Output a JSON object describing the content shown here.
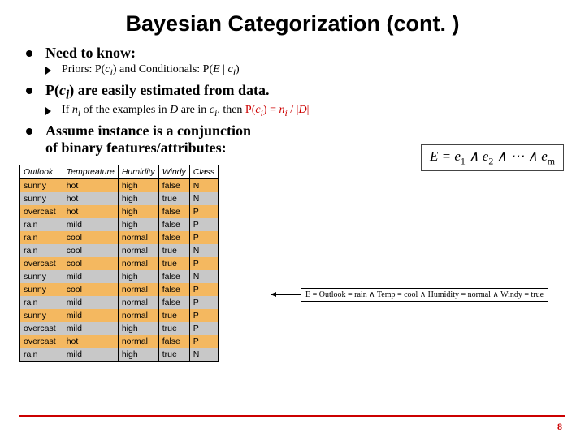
{
  "title": "Bayesian Categorization (cont. )",
  "bullets": {
    "b1": "Need to know:",
    "b1_sub_priors": "Priors: P(",
    "b1_sub_priors2": ")    and    Conditionals: P(",
    "b1_sub_priors3": " | ",
    "b1_sub_priors4": ")",
    "b2_pre": "P(",
    "b2_post": ") are easily estimated from data.",
    "b2_sub_a": "If ",
    "b2_sub_b": " of the examples in ",
    "b2_sub_c": " are in ",
    "b2_sub_d": ", then  ",
    "b2_sub_e": "P(",
    "b2_sub_f": ") =  ",
    "b2_sub_g": " / |",
    "b2_sub_h": "|",
    "b3a": "Assume instance is a conjunction",
    "b3b": "of binary features/attributes:"
  },
  "vars": {
    "ci": "c",
    "ci_sub": "i",
    "E": "E",
    "ni": "n",
    "ni_sub": "i",
    "D": "D",
    "e": "e",
    "m": "m"
  },
  "formula": {
    "lhs": "E",
    "eq": " = ",
    "rhs_parts": [
      "e",
      "1",
      " ∧ ",
      "e",
      "2",
      " ∧ ",
      "⋯",
      " ∧ ",
      "e",
      "m"
    ]
  },
  "table": {
    "columns": [
      "Outlook",
      "Tempreature",
      "Humidity",
      "Windy",
      "Class"
    ],
    "rows": [
      {
        "c": [
          "sunny",
          "hot",
          "high",
          "false",
          "N"
        ],
        "cls": "orange"
      },
      {
        "c": [
          "sunny",
          "hot",
          "high",
          "true",
          "N"
        ],
        "cls": "gray"
      },
      {
        "c": [
          "overcast",
          "hot",
          "high",
          "false",
          "P"
        ],
        "cls": "orange"
      },
      {
        "c": [
          "rain",
          "mild",
          "high",
          "false",
          "P"
        ],
        "cls": "gray"
      },
      {
        "c": [
          "rain",
          "cool",
          "normal",
          "false",
          "P"
        ],
        "cls": "orange"
      },
      {
        "c": [
          "rain",
          "cool",
          "normal",
          "true",
          "N"
        ],
        "cls": "gray"
      },
      {
        "c": [
          "overcast",
          "cool",
          "normal",
          "true",
          "P"
        ],
        "cls": "orange"
      },
      {
        "c": [
          "sunny",
          "mild",
          "high",
          "false",
          "N"
        ],
        "cls": "gray"
      },
      {
        "c": [
          "sunny",
          "cool",
          "normal",
          "false",
          "P"
        ],
        "cls": "orange"
      },
      {
        "c": [
          "rain",
          "mild",
          "normal",
          "false",
          "P"
        ],
        "cls": "gray"
      },
      {
        "c": [
          "sunny",
          "mild",
          "normal",
          "true",
          "P"
        ],
        "cls": "orange"
      },
      {
        "c": [
          "overcast",
          "mild",
          "high",
          "true",
          "P"
        ],
        "cls": "gray"
      },
      {
        "c": [
          "overcast",
          "hot",
          "normal",
          "false",
          "P"
        ],
        "cls": "orange"
      },
      {
        "c": [
          "rain",
          "mild",
          "high",
          "true",
          "N"
        ],
        "cls": "gray"
      }
    ]
  },
  "annotation": "E = Outlook = rain ∧ Temp = cool ∧ Humidity = normal ∧ Windy = true",
  "page": "8",
  "colors": {
    "accent": "#cc0000",
    "row_orange": "#f4b860",
    "row_gray": "#c8c8c8"
  }
}
